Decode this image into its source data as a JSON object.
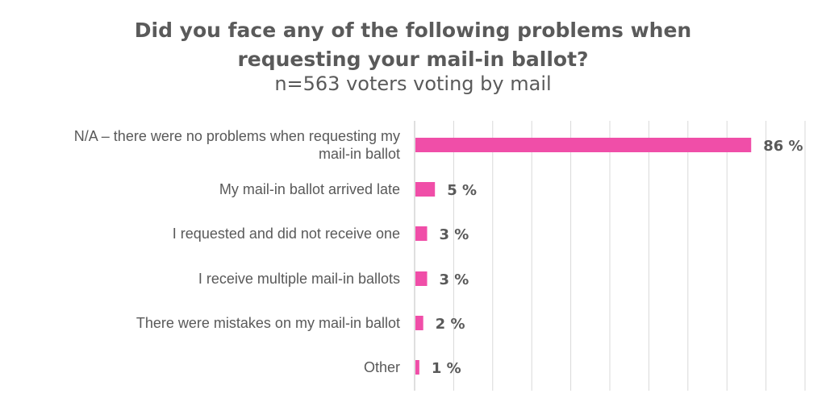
{
  "chart_data": {
    "type": "bar",
    "orientation": "horizontal",
    "title_lines": [
      "Did you face any of the following problems when",
      "requesting your mail-in ballot?"
    ],
    "subtitle": "n=563 voters voting by mail",
    "categories": [
      [
        "N/A – there were no problems when requesting my",
        "mail-in ballot"
      ],
      [
        "My mail-in ballot arrived late"
      ],
      [
        "I requested and did not receive one"
      ],
      [
        "I receive multiple mail-in ballots"
      ],
      [
        "There were mistakes on my mail-in ballot"
      ],
      [
        "Other"
      ]
    ],
    "values": [
      86,
      5,
      3,
      3,
      2,
      1
    ],
    "value_labels": [
      "86 %",
      "5 %",
      "3 %",
      "3 %",
      "2 %",
      "1 %"
    ],
    "xlim": [
      0,
      100
    ],
    "grid": true,
    "bar_color": "#f04ea8",
    "grid_color": "#d9d9d9"
  }
}
